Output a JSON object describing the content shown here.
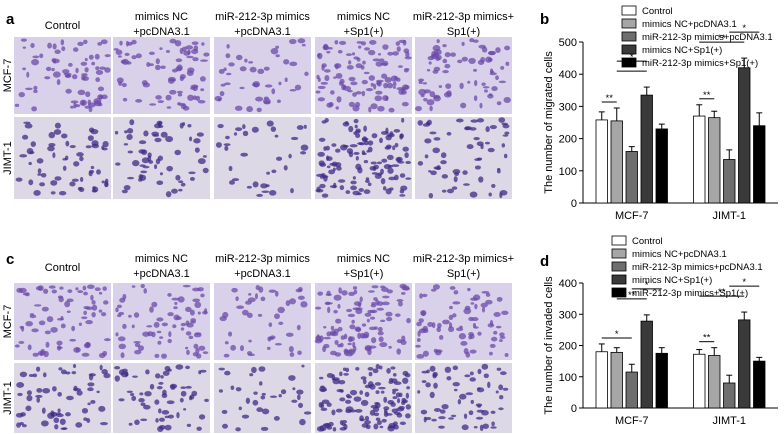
{
  "image_panels": [
    {
      "letter": "a",
      "columns": [
        [
          "Control"
        ],
        [
          "mimics NC",
          "+pcDNA3.1"
        ],
        [
          "miR-212-3p mimics",
          "+pcDNA3.1"
        ],
        [
          "mimics NC",
          "+Sp1(+)"
        ],
        [
          "miR-212-3p mimics+",
          "Sp1(+)"
        ]
      ],
      "rows": [
        "MCF-7",
        "JIMT-1"
      ]
    },
    {
      "letter": "c",
      "columns": [
        [
          "Control"
        ],
        [
          "mimics NC",
          "+pcDNA3.1"
        ],
        [
          "miR-212-3p mimics",
          "+pcDNA3.1"
        ],
        [
          "mimics NC",
          "+Sp1(+)"
        ],
        [
          "miR-212-3p mimics+",
          "Sp1(+)"
        ]
      ],
      "rows": [
        "MCF-7",
        "JIMT-1"
      ]
    }
  ],
  "chart_data": [
    {
      "type": "bar",
      "letter": "b",
      "y_label": "The number of migrated cells",
      "categories": [
        "MCF-7",
        "JIMT-1"
      ],
      "series": [
        {
          "name": "Control",
          "color": "#ffffff",
          "values": [
            258,
            270
          ],
          "errors": [
            25,
            35
          ]
        },
        {
          "name": "mimics NC+pcDNA3.1",
          "color": "#a6a6a6",
          "values": [
            255,
            265
          ],
          "errors": [
            40,
            20
          ]
        },
        {
          "name": "miR-212-3p mimics+pcDNA3.1",
          "color": "#6e6e6e",
          "values": [
            160,
            135
          ],
          "errors": [
            15,
            30
          ]
        },
        {
          "name": "mimics NC+Sp1(+)",
          "color": "#3a3a3a",
          "values": [
            335,
            420
          ],
          "errors": [
            25,
            30
          ]
        },
        {
          "name": "miR-212-3p mimics+Sp1(+)",
          "color": "#000000",
          "values": [
            230,
            240
          ],
          "errors": [
            15,
            40
          ]
        }
      ],
      "ylim": [
        0,
        500
      ],
      "yticks": [
        0,
        100,
        200,
        300,
        400,
        500
      ],
      "annotations": [
        "**",
        "*",
        "*",
        "**",
        "**",
        "*"
      ]
    },
    {
      "type": "bar",
      "letter": "d",
      "y_label": "The number of invaded cells",
      "categories": [
        "MCF-7",
        "JIMT-1"
      ],
      "series": [
        {
          "name": "Control",
          "color": "#ffffff",
          "values": [
            180,
            172
          ],
          "errors": [
            25,
            15
          ]
        },
        {
          "name": "mimics NC+pcDNA3.1",
          "color": "#a6a6a6",
          "values": [
            178,
            168
          ],
          "errors": [
            15,
            25
          ]
        },
        {
          "name": "miR-212-3p mimics+pcDNA3.1",
          "color": "#6e6e6e",
          "values": [
            115,
            80
          ],
          "errors": [
            25,
            25
          ]
        },
        {
          "name": "mimics NC+Sp1(+)",
          "color": "#3a3a3a",
          "values": [
            278,
            282
          ],
          "errors": [
            20,
            25
          ]
        },
        {
          "name": "miR-212-3p mimics+Sp1(+)",
          "color": "#000000",
          "values": [
            175,
            150
          ],
          "errors": [
            18,
            12
          ]
        }
      ],
      "ylim": [
        0,
        400
      ],
      "yticks": [
        0,
        100,
        200,
        300,
        400
      ],
      "annotations": [
        "*",
        "**",
        "*",
        "**",
        "**",
        "*"
      ]
    }
  ]
}
